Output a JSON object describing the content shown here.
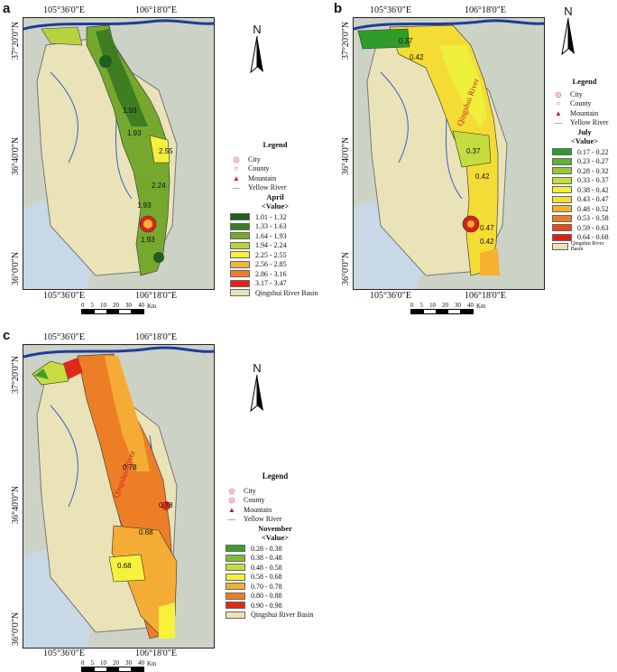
{
  "panels": [
    {
      "id": "a",
      "label": "a",
      "lon_labels": [
        "105°36'0\"E",
        "106°18'0\"E"
      ],
      "lat_labels": [
        "37°20'0\"N",
        "36°40'0\"N",
        "36°0'0\"N"
      ],
      "legend": {
        "title": "Legend",
        "city": "City",
        "county": "County",
        "mountain": "Mountain",
        "river": "Yellow River",
        "month": "April",
        "value": "<Value>",
        "classes": [
          {
            "range": "1.01 - 1.32",
            "color": "#1e5e1e"
          },
          {
            "range": "1.33 - 1.63",
            "color": "#3f7d22"
          },
          {
            "range": "1.64 - 1.93",
            "color": "#76a82e"
          },
          {
            "range": "1.94 - 2.24",
            "color": "#b8d23e"
          },
          {
            "range": "2.25 - 2.55",
            "color": "#f4f03c"
          },
          {
            "range": "2.56 - 2.85",
            "color": "#f6b43c"
          },
          {
            "range": "2.86 - 3.16",
            "color": "#ef7a2a"
          },
          {
            "range": "3.17 - 3.47",
            "color": "#e2231a"
          }
        ],
        "basin": "Qingshui River Basin"
      },
      "contours": [
        "1.93",
        "1.93",
        "1.93",
        "1.93",
        "2.24",
        "2.55"
      ]
    },
    {
      "id": "b",
      "label": "b",
      "lon_labels": [
        "105°36'0\"E",
        "106°18'0\"E"
      ],
      "lat_labels": [
        "37°20'0\"N",
        "36°40'0\"N",
        "36°0'0\"N"
      ],
      "legend": {
        "title": "Legend",
        "city": "City",
        "county": "County",
        "mountain": "Mountain",
        "river": "Yellow River",
        "month": "July",
        "value": "<Value>",
        "classes": [
          {
            "range": "0.17 - 0.22",
            "color": "#2f9c2a"
          },
          {
            "range": "0.23 - 0.27",
            "color": "#5db530"
          },
          {
            "range": "0.28 - 0.32",
            "color": "#94c93a"
          },
          {
            "range": "0.33 - 0.37",
            "color": "#c4dc3e"
          },
          {
            "range": "0.38 - 0.42",
            "color": "#eef03c"
          },
          {
            "range": "0.43 - 0.47",
            "color": "#f4dc34"
          },
          {
            "range": "0.48 - 0.52",
            "color": "#f6b02e"
          },
          {
            "range": "0.53 - 0.58",
            "color": "#ef7a22"
          },
          {
            "range": "0.59 - 0.63",
            "color": "#e44a1c"
          },
          {
            "range": "0.64 - 0.68",
            "color": "#d8211a"
          }
        ],
        "basin": "Qingshui River Basin"
      },
      "contours": [
        "0.37",
        "0.42",
        "0.37",
        "0.42",
        "0.47",
        "0.42"
      ]
    },
    {
      "id": "c",
      "label": "c",
      "lon_labels": [
        "105°36'0\"E",
        "106°18'0\"E"
      ],
      "lat_labels": [
        "37°20'0\"N",
        "36°40'0\"N",
        "36°0'0\"N"
      ],
      "legend": {
        "title": "Legend",
        "city": "City",
        "county": "County",
        "mountain": "Mountain",
        "river": "Yellow River",
        "month": "November",
        "value": "<Value>",
        "classes": [
          {
            "range": "0.28 - 0.38",
            "color": "#3d9e2a"
          },
          {
            "range": "0.38 - 0.48",
            "color": "#7fbd34"
          },
          {
            "range": "0.48 - 0.58",
            "color": "#c6dc40"
          },
          {
            "range": "0.58 - 0.68",
            "color": "#f6f23c"
          },
          {
            "range": "0.70 - 0.78",
            "color": "#f5ac34"
          },
          {
            "range": "0.80 - 0.88",
            "color": "#ee7e26"
          },
          {
            "range": "0.90 - 0.98",
            "color": "#de2a1a"
          }
        ],
        "basin": "Qingshui River Basin"
      },
      "contours": [
        "0.78",
        "0.78",
        "0.68",
        "0.68"
      ]
    }
  ],
  "north": "N",
  "scale": {
    "ticks": [
      "0",
      "5",
      "10",
      "20",
      "30",
      "40"
    ],
    "unit": "Km"
  },
  "map_text": {
    "river_name_b": "Qingshui River",
    "river_name_c": "Qingshui River"
  }
}
